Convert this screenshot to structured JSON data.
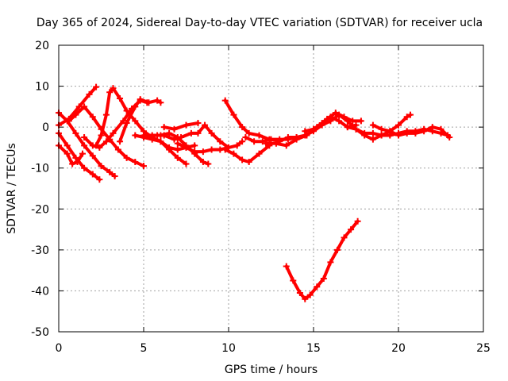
{
  "chart_data": {
    "type": "scatter",
    "title": "Day 365 of 2024, Sidereal Day-to-day VTEC variation (SDTVAR) for receiver ucla",
    "xlabel": "GPS time / hours",
    "ylabel": "SDTVAR / TECUs",
    "xlim": [
      0,
      25
    ],
    "ylim": [
      -50,
      20
    ],
    "xticks": [
      0,
      5,
      10,
      15,
      20,
      25
    ],
    "yticks": [
      -50,
      -40,
      -30,
      -20,
      -10,
      0,
      10,
      20
    ],
    "grid": true,
    "color": "#ff0000",
    "series": [
      {
        "points": [
          [
            0.0,
            3.5
          ],
          [
            0.5,
            1.5
          ],
          [
            1.0,
            -1.5
          ],
          [
            1.5,
            -4.5
          ],
          [
            2.0,
            -7.0
          ],
          [
            2.5,
            -9.5
          ],
          [
            3.0,
            -11.0
          ],
          [
            3.3,
            -12.0
          ]
        ]
      },
      {
        "points": [
          [
            0.0,
            0.5
          ],
          [
            0.6,
            2.0
          ],
          [
            1.2,
            5.0
          ],
          [
            1.8,
            8.0
          ],
          [
            2.2,
            9.8
          ]
        ]
      },
      {
        "points": [
          [
            0.0,
            -1.5
          ],
          [
            0.5,
            -4.5
          ],
          [
            1.0,
            -7.5
          ],
          [
            1.5,
            -10.0
          ],
          [
            2.0,
            -11.5
          ],
          [
            2.4,
            -12.8
          ]
        ]
      },
      {
        "points": [
          [
            0.0,
            -4.5
          ],
          [
            0.5,
            -6.5
          ],
          [
            0.8,
            -9.0
          ],
          [
            1.1,
            -8.5
          ],
          [
            1.4,
            -6.5
          ]
        ]
      },
      {
        "points": [
          [
            0.6,
            1.5
          ],
          [
            1.0,
            3.0
          ],
          [
            1.5,
            5.0
          ],
          [
            2.0,
            2.5
          ],
          [
            2.5,
            -0.5
          ],
          [
            3.0,
            -3.0
          ],
          [
            3.5,
            -5.5
          ],
          [
            4.0,
            -7.5
          ],
          [
            4.5,
            -8.5
          ],
          [
            5.0,
            -9.5
          ]
        ]
      },
      {
        "points": [
          [
            1.5,
            -2.5
          ],
          [
            2.0,
            -4.5
          ],
          [
            2.4,
            -5.0
          ],
          [
            2.8,
            -3.5
          ],
          [
            3.2,
            -1.5
          ],
          [
            3.8,
            1.5
          ],
          [
            4.3,
            4.5
          ],
          [
            4.8,
            6.5
          ],
          [
            5.2,
            6.0
          ]
        ]
      },
      {
        "points": [
          [
            2.2,
            -4.5
          ],
          [
            2.5,
            -2.0
          ],
          [
            2.8,
            3.0
          ],
          [
            3.0,
            8.5
          ],
          [
            3.2,
            9.5
          ],
          [
            3.6,
            7.0
          ],
          [
            4.0,
            4.0
          ],
          [
            4.5,
            1.5
          ],
          [
            5.0,
            -1.0
          ],
          [
            5.5,
            -2.5
          ],
          [
            6.0,
            -3.5
          ],
          [
            6.5,
            -5.5
          ],
          [
            7.0,
            -7.5
          ],
          [
            7.5,
            -9.0
          ]
        ]
      },
      {
        "points": [
          [
            3.6,
            -3.5
          ],
          [
            4.0,
            1.0
          ],
          [
            4.5,
            5.0
          ],
          [
            4.8,
            6.8
          ],
          [
            5.3,
            6.0
          ],
          [
            5.8,
            6.5
          ],
          [
            6.0,
            6.0
          ]
        ]
      },
      {
        "points": [
          [
            4.5,
            -2.0
          ],
          [
            5.0,
            -2.5
          ],
          [
            5.5,
            -3.0
          ],
          [
            6.0,
            -3.5
          ],
          [
            6.5,
            -5.0
          ],
          [
            7.0,
            -5.5
          ],
          [
            7.5,
            -5.0
          ],
          [
            8.0,
            -4.5
          ]
        ]
      },
      {
        "points": [
          [
            5.0,
            -2.0
          ],
          [
            5.5,
            -2.0
          ],
          [
            6.0,
            -2.0
          ],
          [
            6.5,
            -1.5
          ],
          [
            7.0,
            -2.5
          ],
          [
            7.5,
            -4.5
          ],
          [
            8.0,
            -6.5
          ],
          [
            8.5,
            -8.5
          ],
          [
            8.8,
            -9.0
          ]
        ]
      },
      {
        "points": [
          [
            5.8,
            -2.0
          ],
          [
            6.2,
            -2.0
          ],
          [
            6.8,
            -3.0
          ],
          [
            7.2,
            -2.5
          ],
          [
            7.8,
            -1.5
          ],
          [
            8.2,
            -1.5
          ],
          [
            8.6,
            0.5
          ],
          [
            9.0,
            -1.5
          ],
          [
            9.5,
            -3.5
          ],
          [
            10.0,
            -5.0
          ]
        ]
      },
      {
        "points": [
          [
            6.2,
            0.0
          ],
          [
            6.8,
            -0.5
          ],
          [
            7.5,
            0.5
          ],
          [
            8.2,
            1.0
          ]
        ]
      },
      {
        "points": [
          [
            7.0,
            -4.0
          ],
          [
            7.5,
            -5.0
          ],
          [
            8.0,
            -6.0
          ],
          [
            8.5,
            -6.0
          ],
          [
            9.0,
            -5.5
          ],
          [
            9.5,
            -5.5
          ],
          [
            10.0,
            -5.0
          ],
          [
            10.5,
            -4.5
          ],
          [
            10.8,
            -3.5
          ]
        ]
      },
      {
        "points": [
          [
            9.8,
            -5.5
          ],
          [
            10.3,
            -6.5
          ],
          [
            10.8,
            -8.0
          ],
          [
            11.2,
            -8.5
          ],
          [
            11.8,
            -6.5
          ],
          [
            12.4,
            -4.5
          ]
        ]
      },
      {
        "points": [
          [
            9.8,
            6.5
          ],
          [
            10.3,
            3.0
          ],
          [
            10.8,
            0.0
          ],
          [
            11.2,
            -1.5
          ],
          [
            11.8,
            -2.0
          ],
          [
            12.4,
            -3.0
          ],
          [
            13.0,
            -3.0
          ],
          [
            13.5,
            -3.0
          ],
          [
            14.0,
            -2.5
          ]
        ]
      },
      {
        "points": [
          [
            11.0,
            -2.5
          ],
          [
            11.5,
            -3.5
          ],
          [
            12.0,
            -3.5
          ],
          [
            12.5,
            -3.0
          ],
          [
            13.0,
            -3.5
          ],
          [
            13.5,
            -2.5
          ],
          [
            14.0,
            -2.5
          ],
          [
            14.5,
            -2.0
          ],
          [
            15.0,
            -1.0
          ],
          [
            15.5,
            0.5
          ],
          [
            16.0,
            1.5
          ],
          [
            16.5,
            3.0
          ],
          [
            17.0,
            1.5
          ],
          [
            17.5,
            -0.5
          ],
          [
            18.0,
            -1.5
          ],
          [
            18.5,
            -1.5
          ],
          [
            19.0,
            -2.0
          ],
          [
            19.5,
            -2.0
          ],
          [
            20.0,
            -1.5
          ],
          [
            20.5,
            -1.0
          ],
          [
            21.0,
            -1.0
          ],
          [
            21.5,
            -0.5
          ],
          [
            22.0,
            -1.0
          ],
          [
            22.5,
            -1.5
          ],
          [
            22.9,
            -2.0
          ]
        ]
      },
      {
        "points": [
          [
            12.2,
            -4.0
          ],
          [
            12.8,
            -4.0
          ],
          [
            13.4,
            -4.5
          ],
          [
            14.0,
            -3.0
          ],
          [
            14.6,
            -2.0
          ],
          [
            15.2,
            0.0
          ],
          [
            15.8,
            2.0
          ],
          [
            16.3,
            3.5
          ],
          [
            16.8,
            2.5
          ],
          [
            17.3,
            1.5
          ],
          [
            17.8,
            1.5
          ]
        ]
      },
      {
        "points": [
          [
            14.5,
            -1.0
          ],
          [
            15.0,
            -0.5
          ],
          [
            15.5,
            1.0
          ],
          [
            16.0,
            2.5
          ],
          [
            16.5,
            1.5
          ],
          [
            17.0,
            0.0
          ],
          [
            17.5,
            0.5
          ]
        ]
      },
      {
        "points": [
          [
            17.0,
            0.0
          ],
          [
            17.5,
            -0.5
          ],
          [
            18.0,
            -2.0
          ],
          [
            18.5,
            -3.0
          ],
          [
            19.0,
            -2.0
          ],
          [
            19.5,
            -1.0
          ],
          [
            20.0,
            0.5
          ],
          [
            20.5,
            2.5
          ],
          [
            20.7,
            3.0
          ]
        ]
      },
      {
        "points": [
          [
            18.5,
            0.5
          ],
          [
            19.0,
            -0.5
          ],
          [
            19.5,
            -1.0
          ],
          [
            20.0,
            -2.0
          ],
          [
            20.5,
            -1.5
          ],
          [
            21.0,
            -1.5
          ],
          [
            21.5,
            -1.0
          ],
          [
            22.0,
            0.0
          ],
          [
            22.5,
            -0.5
          ],
          [
            23.0,
            -2.5
          ]
        ]
      },
      {
        "points": [
          [
            13.4,
            -34.0
          ],
          [
            13.8,
            -37.5
          ],
          [
            14.2,
            -40.5
          ],
          [
            14.5,
            -42.0
          ],
          [
            14.8,
            -41.0
          ],
          [
            15.2,
            -39.0
          ],
          [
            15.6,
            -37.0
          ],
          [
            16.0,
            -33.0
          ],
          [
            16.4,
            -30.0
          ],
          [
            16.8,
            -27.0
          ],
          [
            17.2,
            -25.0
          ],
          [
            17.6,
            -23.0
          ]
        ]
      }
    ]
  }
}
